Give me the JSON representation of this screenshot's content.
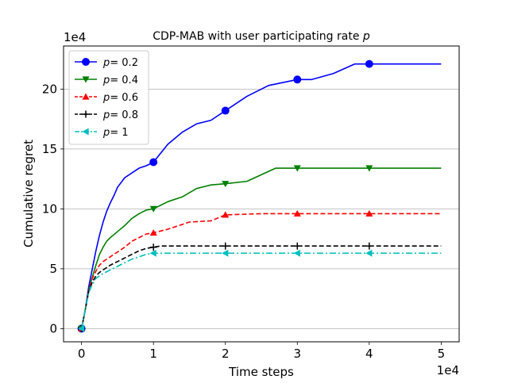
{
  "chart_data": {
    "type": "line",
    "title_prefix": "CDP-MAB with user participating rate",
    "title_var": "p",
    "xlabel": "Time steps",
    "ylabel": "Cumulative regret",
    "x_offset_label": "1e4",
    "y_offset_label": "1e4",
    "xlim": [
      -0.25,
      5.25
    ],
    "ylim": [
      -1.1,
      23.6
    ],
    "xticks": [
      0,
      1,
      2,
      3,
      4,
      5
    ],
    "xtick_labels": [
      "0",
      "1",
      "2",
      "3",
      "4",
      "5"
    ],
    "yticks": [
      0,
      5,
      10,
      15,
      20
    ],
    "ytick_labels": [
      "0",
      "5",
      "10",
      "15",
      "20"
    ],
    "grid": "y-axis",
    "legend_location": "upper-left",
    "series": [
      {
        "name": "p= 0.2",
        "legend_var": "p",
        "legend_value": "= 0.2",
        "color": "#0000ff",
        "linestyle": "solid",
        "marker": "circle",
        "markers_at": [
          0,
          1,
          2,
          3,
          4
        ],
        "x": [
          0,
          0.05,
          0.1,
          0.15,
          0.2,
          0.25,
          0.3,
          0.35,
          0.4,
          0.45,
          0.5,
          0.6,
          0.7,
          0.8,
          0.9,
          1.0,
          1.2,
          1.4,
          1.6,
          1.8,
          2.0,
          2.3,
          2.6,
          3.0,
          3.2,
          3.5,
          3.8,
          4.0,
          4.5,
          5.0
        ],
        "y": [
          0,
          1.5,
          3.5,
          5.0,
          6.5,
          7.8,
          8.9,
          9.8,
          10.5,
          11.1,
          11.8,
          12.6,
          13.0,
          13.4,
          13.6,
          13.9,
          15.4,
          16.4,
          17.1,
          17.4,
          18.2,
          19.4,
          20.3,
          20.8,
          20.8,
          21.3,
          22.1,
          22.1,
          22.1,
          22.1
        ]
      },
      {
        "name": "p= 0.4",
        "legend_var": "p",
        "legend_value": "= 0.4",
        "color": "#008000",
        "linestyle": "solid",
        "marker": "triangle-down",
        "markers_at": [
          0,
          1,
          2,
          3,
          4
        ],
        "x": [
          0,
          0.05,
          0.1,
          0.15,
          0.2,
          0.25,
          0.3,
          0.35,
          0.4,
          0.5,
          0.6,
          0.7,
          0.8,
          0.9,
          1.0,
          1.2,
          1.4,
          1.6,
          1.8,
          2.0,
          2.3,
          2.7,
          3.0,
          3.5,
          4.0,
          4.5,
          5.0
        ],
        "y": [
          0,
          1.5,
          3.2,
          4.3,
          5.3,
          6.2,
          6.8,
          7.3,
          7.6,
          8.1,
          8.6,
          9.2,
          9.6,
          9.9,
          10.0,
          10.6,
          11.0,
          11.7,
          12.0,
          12.1,
          12.3,
          13.4,
          13.4,
          13.4,
          13.4,
          13.4,
          13.4
        ]
      },
      {
        "name": "p= 0.6",
        "legend_var": "p",
        "legend_value": "= 0.6",
        "color": "#ff0000",
        "linestyle": "dashed",
        "marker": "triangle-up",
        "markers_at": [
          0,
          1,
          2,
          3,
          4
        ],
        "x": [
          0,
          0.05,
          0.1,
          0.15,
          0.2,
          0.25,
          0.3,
          0.4,
          0.5,
          0.6,
          0.7,
          0.8,
          0.9,
          1.0,
          1.2,
          1.5,
          1.8,
          2.0,
          2.5,
          3.0,
          3.5,
          4.0,
          5.0
        ],
        "y": [
          0,
          1.5,
          3.2,
          4.2,
          4.8,
          5.3,
          5.6,
          6.0,
          6.4,
          6.8,
          7.3,
          7.6,
          7.9,
          8.0,
          8.3,
          8.9,
          9.0,
          9.5,
          9.6,
          9.6,
          9.6,
          9.6,
          9.6
        ]
      },
      {
        "name": "p= 0.8",
        "legend_var": "p",
        "legend_value": "= 0.8",
        "color": "#000000",
        "linestyle": "dashed",
        "marker": "plus",
        "markers_at": [
          0,
          1,
          2,
          3,
          4
        ],
        "x": [
          0,
          0.05,
          0.1,
          0.15,
          0.2,
          0.25,
          0.3,
          0.4,
          0.5,
          0.6,
          0.7,
          0.8,
          0.9,
          1.0,
          1.1,
          2.0,
          3.0,
          4.0,
          5.0
        ],
        "y": [
          0,
          1.5,
          3.1,
          3.9,
          4.4,
          4.7,
          4.9,
          5.3,
          5.6,
          5.9,
          6.2,
          6.5,
          6.7,
          6.8,
          6.9,
          6.9,
          6.9,
          6.9,
          6.9
        ]
      },
      {
        "name": "p= 1",
        "legend_var": "p",
        "legend_value": "= 1",
        "color": "#00bfbf",
        "linestyle": "dashdot",
        "marker": "triangle-left",
        "markers_at": [
          0,
          1,
          2,
          3,
          4
        ],
        "x": [
          0,
          0.05,
          0.1,
          0.15,
          0.2,
          0.25,
          0.3,
          0.4,
          0.5,
          0.6,
          0.7,
          0.8,
          0.9,
          1.0,
          2.0,
          3.0,
          4.0,
          5.0
        ],
        "y": [
          0,
          1.5,
          3.0,
          3.7,
          4.2,
          4.4,
          4.6,
          4.9,
          5.2,
          5.5,
          5.8,
          6.0,
          6.2,
          6.3,
          6.3,
          6.3,
          6.3,
          6.3
        ]
      }
    ]
  }
}
